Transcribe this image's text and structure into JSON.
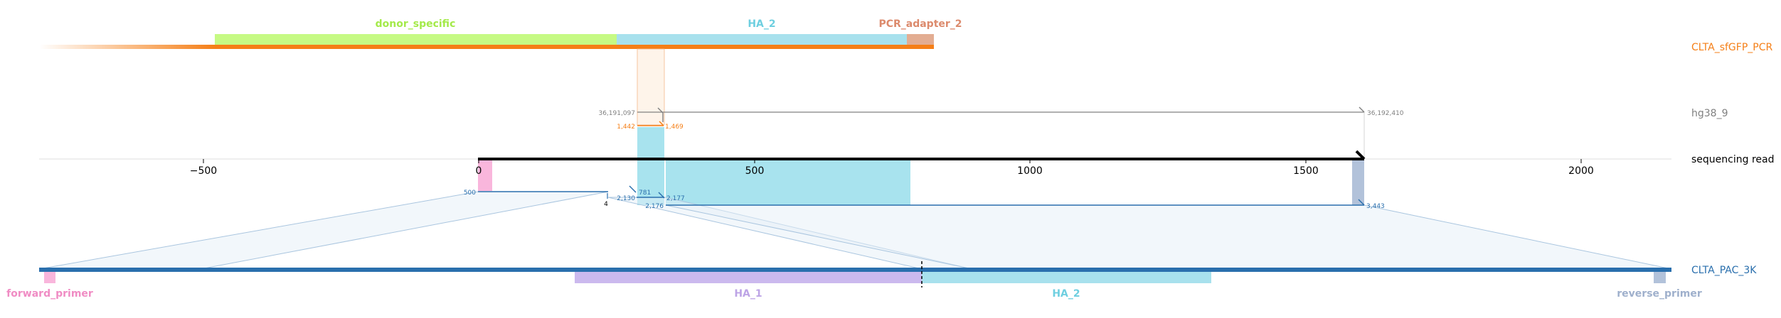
{
  "reference_tracks": {
    "sfgfp_pcr": {
      "name": "CLTA_sfGFP_PCR",
      "color": "#f57f17"
    },
    "hg38": {
      "name": "hg38_9",
      "color": "#808080"
    },
    "read": {
      "name": "sequencing read",
      "color": "#000000"
    },
    "pac": {
      "name": "CLTA_PAC_3K",
      "color": "#2a6fad"
    }
  },
  "top_features": [
    {
      "name": "donor_specific",
      "color": "#c6fa84",
      "text_color": "#a4ea4a"
    },
    {
      "name": "HA_2",
      "color": "#a8e1ed",
      "text_color": "#6ecfe0"
    },
    {
      "name": "PCR_adapter_2",
      "color": "#e3ad92",
      "text_color": "#dc8a6c"
    }
  ],
  "bottom_features": [
    {
      "name": "forward_primer",
      "color": "#f9b6dc",
      "text_color": "#f08cc4"
    },
    {
      "name": "HA_1",
      "color": "#cbb9ee",
      "text_color": "#bda4e6"
    },
    {
      "name": "HA_2",
      "color": "#a8e1ed",
      "text_color": "#6ecfe0"
    },
    {
      "name": "reverse_primer",
      "color": "#b2c2da",
      "text_color": "#9fb0cc"
    }
  ],
  "axis": {
    "ticks": [
      "−500",
      "0",
      "500",
      "1000",
      "1500",
      "2000"
    ]
  },
  "coordinate_labels": {
    "hg38_start": "36,191,097",
    "hg38_end": "36,192,410",
    "sfgfp_start": "1,442",
    "sfgfp_end": "1,469",
    "pac_a_start": "500",
    "pac_a_end": "781",
    "pac_b_start": "2,130",
    "pac_b_end": "2,177",
    "pac_c_start": "2,176",
    "pac_c_end": "3,443",
    "gap": "4"
  }
}
